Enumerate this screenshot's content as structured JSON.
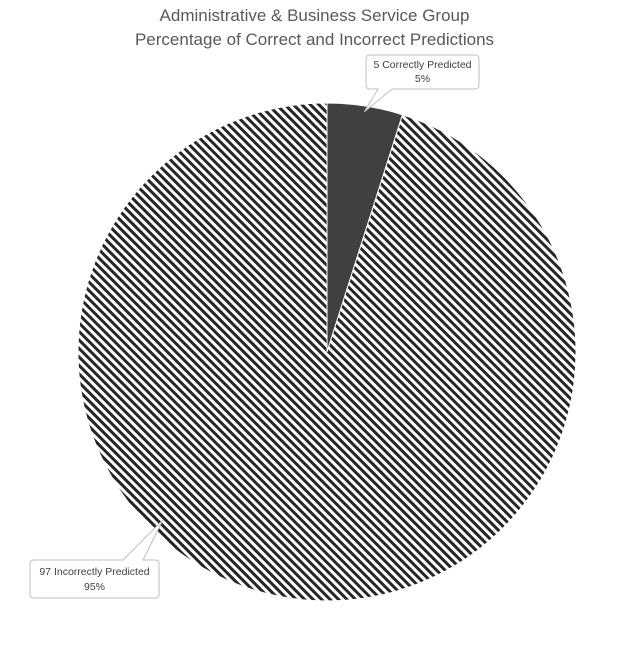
{
  "chart_data": {
    "type": "pie",
    "title": [
      "Administrative & Business Service Group",
      "Percentage of Correct and Incorrect Predictions"
    ],
    "slices": [
      {
        "label": "Correctly Predicted",
        "value": 5,
        "percent": "5%",
        "count_label": "5 Correctly Predicted",
        "fill": "solid",
        "color": "#404040"
      },
      {
        "label": "Incorrectly Predicted",
        "value": 97,
        "percent": "95%",
        "count_label": "97 Incorrectly Predicted",
        "fill": "diagonal-stripes",
        "color": "#262626"
      }
    ],
    "start_angle": "12 o'clock",
    "direction": "clockwise",
    "legend": "none"
  }
}
